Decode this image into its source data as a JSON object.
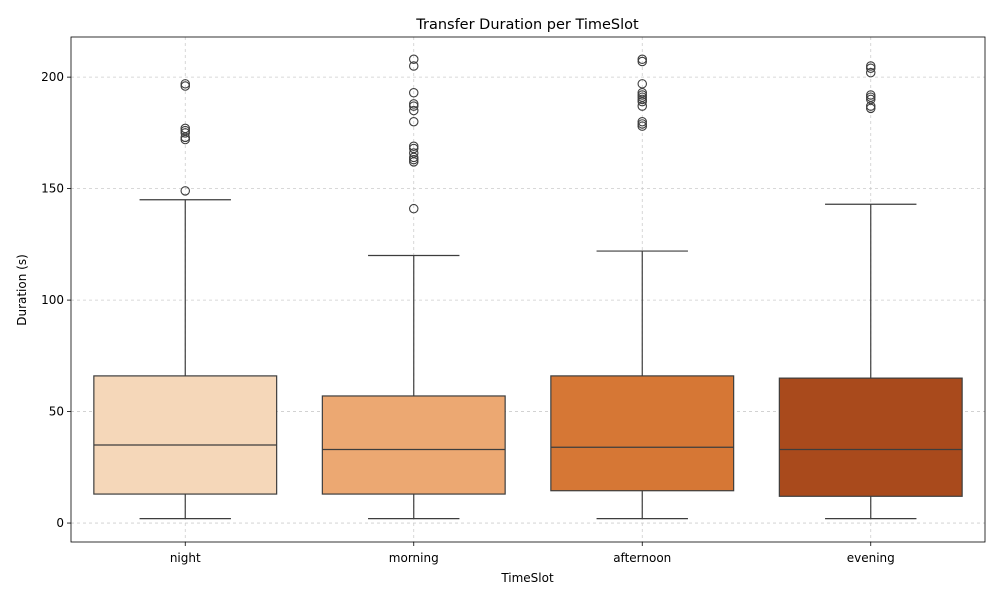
{
  "chart_data": {
    "type": "box",
    "title": "Transfer Duration per TimeSlot",
    "xlabel": "TimeSlot",
    "ylabel": "Duration (s)",
    "ylim": [
      -8.5,
      218
    ],
    "yticks": [
      0,
      50,
      100,
      150,
      200
    ],
    "grid": true,
    "categories": [
      "night",
      "morning",
      "afternoon",
      "evening"
    ],
    "colors": [
      "#f5d7b9",
      "#eca872",
      "#d67735",
      "#a94a1c"
    ],
    "series": [
      {
        "category": "night",
        "whisker_low": 2,
        "q1": 13,
        "median": 35,
        "q3": 66,
        "whisker_high": 145,
        "outliers": [
          149,
          172,
          173,
          175,
          176,
          177,
          196,
          197
        ]
      },
      {
        "category": "morning",
        "whisker_low": 2,
        "q1": 13,
        "median": 33,
        "q3": 57,
        "whisker_high": 120,
        "outliers": [
          141,
          162,
          163,
          164,
          166,
          168,
          169,
          180,
          185,
          187,
          188,
          193,
          205,
          208
        ]
      },
      {
        "category": "afternoon",
        "whisker_low": 2,
        "q1": 14.5,
        "median": 34,
        "q3": 66,
        "whisker_high": 122,
        "outliers": [
          178,
          179,
          180,
          187,
          189,
          190,
          191,
          192,
          193,
          197,
          207,
          208
        ]
      },
      {
        "category": "evening",
        "whisker_low": 2,
        "q1": 12,
        "median": 33,
        "q3": 65,
        "whisker_high": 143,
        "outliers": [
          186,
          187,
          190,
          191,
          192,
          202,
          204,
          205
        ]
      }
    ]
  }
}
